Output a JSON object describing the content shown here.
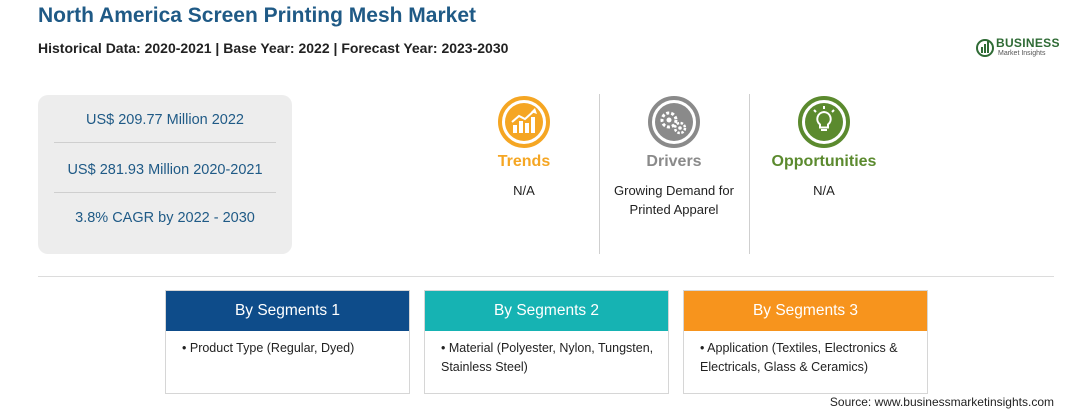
{
  "header": {
    "title": "North America Screen Printing Mesh Market",
    "subtitle": "Historical Data: 2020-2021 | Base Year: 2022 | Forecast Year: 2023-2030"
  },
  "logo": {
    "name": "BUSINESS",
    "tagline": "Market Insights"
  },
  "stats": [
    "US$ 209.77 Million 2022",
    "US$ 281.93 Million 2020-2021",
    "3.8% CAGR by 2022 - 2030"
  ],
  "factors": [
    {
      "title": "Trends",
      "text": "N/A",
      "color": "#f5a623",
      "icon": "trend-chart-icon"
    },
    {
      "title": "Drivers",
      "text": "Growing Demand for Printed Apparel",
      "color": "#8a8a8a",
      "icon": "gears-icon"
    },
    {
      "title": "Opportunities",
      "text": "N/A",
      "color": "#5b8a2e",
      "icon": "lightbulb-icon"
    }
  ],
  "segments": [
    {
      "title": "By Segments 1",
      "item": "Product Type (Regular, Dyed)",
      "color": "#0e4c8a"
    },
    {
      "title": "By Segments 2",
      "item": "Material (Polyester, Nylon, Tungsten, Stainless Steel)",
      "color": "#16b3b3"
    },
    {
      "title": "By Segments 3",
      "item": "Application (Textiles, Electronics & Electricals, Glass & Ceramics)",
      "color": "#f7941d"
    }
  ],
  "source": "Source: www.businessmarketinsights.com"
}
